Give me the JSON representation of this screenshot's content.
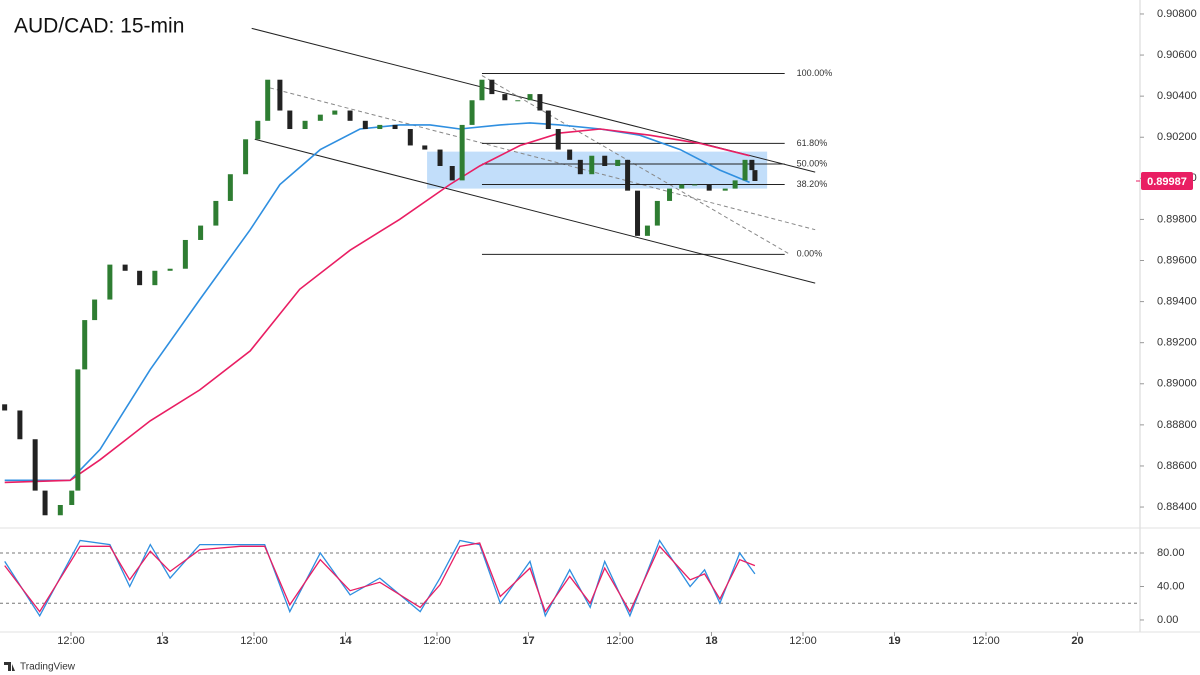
{
  "chart_data": {
    "type": "candlestick",
    "title": "AUD/CAD: 15-min",
    "brand": "TradingView",
    "xlim": [
      2.69,
      152.2
    ],
    "xticks": [
      {
        "value": 12,
        "label": "12:00"
      },
      {
        "value": 24,
        "label": "13"
      },
      {
        "value": 36,
        "label": "12:00"
      },
      {
        "value": 48,
        "label": "14"
      },
      {
        "value": 60,
        "label": "12:00"
      },
      {
        "value": 72,
        "label": "17"
      },
      {
        "value": 84,
        "label": "12:00"
      },
      {
        "value": 96,
        "label": "18"
      },
      {
        "value": 108,
        "label": "12:00"
      },
      {
        "value": 120,
        "label": "19"
      },
      {
        "value": 132,
        "label": "12:00"
      },
      {
        "value": 144,
        "label": "20"
      }
    ],
    "ylim": [
      0.88298,
      0.90868
    ],
    "yticks": [
      {
        "value": 0.908,
        "label": "0.90800"
      },
      {
        "value": 0.906,
        "label": "0.90600"
      },
      {
        "value": 0.904,
        "label": "0.90400"
      },
      {
        "value": 0.902,
        "label": "0.90200"
      },
      {
        "value": 0.9,
        "label": "0.90000"
      },
      {
        "value": 0.898,
        "label": "0.89800"
      },
      {
        "value": 0.896,
        "label": "0.89600"
      },
      {
        "value": 0.894,
        "label": "0.89400"
      },
      {
        "value": 0.892,
        "label": "0.89200"
      },
      {
        "value": 0.89,
        "label": "0.89000"
      },
      {
        "value": 0.888,
        "label": "0.88800"
      },
      {
        "value": 0.886,
        "label": "0.88600"
      },
      {
        "value": 0.884,
        "label": "0.88400"
      }
    ],
    "up_color": "#2e7d32",
    "down_color": "#222222",
    "x": [
      3.3,
      5.3,
      7.3,
      8.6,
      10.6,
      12.1,
      12.9,
      13.8,
      15.1,
      17.1,
      19.1,
      21.0,
      23.0,
      25.0,
      27.0,
      29.0,
      31.0,
      32.9,
      34.9,
      36.5,
      37.8,
      39.4,
      40.7,
      42.7,
      44.7,
      46.6,
      48.6,
      50.6,
      52.5,
      54.5,
      56.5,
      58.4,
      60.4,
      62.0,
      63.3,
      64.6,
      65.9,
      67.2,
      68.9,
      70.6,
      72.2,
      73.5,
      74.6,
      75.9,
      77.4,
      78.8,
      80.3,
      82.0,
      83.7,
      85.0,
      86.3,
      87.6,
      88.9,
      90.5,
      92.1,
      93.8,
      95.7,
      97.8,
      99.1,
      100.4,
      101.3,
      101.7
    ],
    "open": [
      0.889,
      0.8887,
      0.8873,
      0.8848,
      0.8836,
      0.8841,
      0.8848,
      0.8907,
      0.8931,
      0.8941,
      0.8958,
      0.8955,
      0.8948,
      0.8955,
      0.8956,
      0.897,
      0.8977,
      0.8989,
      0.9002,
      0.9019,
      0.9028,
      0.9048,
      0.9033,
      0.9024,
      0.9028,
      0.9031,
      0.9033,
      0.9028,
      0.9024,
      0.9026,
      0.9024,
      0.9016,
      0.9014,
      0.9006,
      0.8999,
      0.9026,
      0.9038,
      0.9048,
      0.9041,
      0.9038,
      0.9038,
      0.9041,
      0.9033,
      0.9024,
      0.9014,
      0.9009,
      0.9002,
      0.9011,
      0.9006,
      0.9009,
      0.8994,
      0.8972,
      0.8977,
      0.8989,
      0.8995,
      0.8997,
      0.8997,
      0.8994,
      0.8995,
      0.8999,
      0.9009,
      0.9004
    ],
    "close": [
      0.8887,
      0.8873,
      0.8848,
      0.8836,
      0.8841,
      0.8848,
      0.8907,
      0.8931,
      0.8941,
      0.8958,
      0.8955,
      0.8948,
      0.8955,
      0.8956,
      0.897,
      0.8977,
      0.8989,
      0.9002,
      0.9019,
      0.9028,
      0.9048,
      0.9033,
      0.9024,
      0.9028,
      0.9031,
      0.9033,
      0.9028,
      0.9024,
      0.9026,
      0.9024,
      0.9016,
      0.9014,
      0.9006,
      0.8999,
      0.9026,
      0.9038,
      0.9048,
      0.9041,
      0.9038,
      0.9038,
      0.9041,
      0.9033,
      0.9024,
      0.9014,
      0.9009,
      0.9002,
      0.9011,
      0.9006,
      0.9009,
      0.8994,
      0.8972,
      0.8977,
      0.8989,
      0.8995,
      0.8997,
      0.8997,
      0.8994,
      0.8995,
      0.8999,
      0.9009,
      0.9004,
      0.89987
    ],
    "last_price": {
      "value": 0.89987,
      "color": "#e91e63"
    },
    "overlays": [
      {
        "color": "#2f8fe0",
        "x": [
          3.3,
          11.9,
          15.8,
          22.4,
          28.9,
          35.5,
          39.4,
          44.7,
          49.9,
          55.1,
          59.1,
          63.0,
          68.3,
          72.2,
          76.1,
          81.4,
          86.6,
          91.9,
          97.1,
          101.0
        ],
        "values": [
          0.8853,
          0.8853,
          0.8868,
          0.8907,
          0.8941,
          0.8975,
          0.8997,
          0.9014,
          0.9024,
          0.9026,
          0.9026,
          0.9024,
          0.9026,
          0.9027,
          0.9026,
          0.9024,
          0.9021,
          0.9014,
          0.9004,
          0.8998
        ]
      },
      {
        "color": "#e91e63",
        "x": [
          3.3,
          11.9,
          15.8,
          22.4,
          28.9,
          35.5,
          42.0,
          48.6,
          55.1,
          61.7,
          65.6,
          70.9,
          76.1,
          81.4,
          87.9,
          94.5,
          101.0
        ],
        "values": [
          0.8852,
          0.8853,
          0.8863,
          0.8882,
          0.8897,
          0.8916,
          0.8946,
          0.8965,
          0.898,
          0.8997,
          0.9006,
          0.9016,
          0.9022,
          0.9024,
          0.9021,
          0.9017,
          0.9011
        ]
      }
    ],
    "zone": {
      "x0": 58.7,
      "x1": 103.3,
      "top": 0.9013,
      "bottom": 0.8995,
      "color": "#90c2f5"
    },
    "fib": {
      "x0": 65.9,
      "x1": 105.6,
      "levels": [
        {
          "label": "100.00%",
          "price": 0.9051
        },
        {
          "label": "61.80%",
          "price": 0.9017
        },
        {
          "label": "50.00%",
          "price": 0.9007
        },
        {
          "label": "38.20%",
          "price": 0.8997
        },
        {
          "label": "0.00%",
          "price": 0.8963
        }
      ]
    },
    "trendlines": [
      {
        "x": [
          35.7,
          109.6
        ],
        "values": [
          0.9073,
          0.9003
        ],
        "dashed": false
      },
      {
        "x": [
          36.1,
          109.6
        ],
        "values": [
          0.9019,
          0.8949
        ],
        "dashed": false
      },
      {
        "x": [
          38.1,
          109.6
        ],
        "values": [
          0.9044,
          0.8975
        ],
        "dashed": true
      },
      {
        "x": [
          65.9,
          106.3
        ],
        "values": [
          0.905,
          0.8963
        ],
        "dashed": true
      }
    ],
    "indicator": {
      "type": "line",
      "ylim": [
        -9.6,
        107.5
      ],
      "yticks": [
        {
          "value": 80,
          "label": "80.00"
        },
        {
          "value": 40,
          "label": "40.00"
        },
        {
          "value": 0,
          "label": "0.00"
        }
      ],
      "levels": [
        80,
        20
      ],
      "x": [
        3.3,
        7.9,
        13.2,
        17.1,
        19.7,
        22.4,
        25.0,
        28.9,
        34.2,
        37.4,
        40.7,
        44.7,
        48.6,
        52.5,
        57.8,
        60.4,
        63.0,
        65.6,
        68.3,
        72.2,
        74.2,
        77.4,
        80.1,
        82.0,
        85.3,
        89.2,
        93.2,
        95.1,
        97.1,
        99.7,
        101.7
      ],
      "series": [
        {
          "color": "#2f8fe0",
          "values": [
            70,
            5,
            95,
            90,
            40,
            90,
            50,
            90,
            90,
            90,
            10,
            80,
            30,
            50,
            10,
            50,
            95,
            90,
            20,
            70,
            5,
            60,
            15,
            70,
            5,
            95,
            40,
            60,
            20,
            80,
            55
          ]
        },
        {
          "color": "#e91e63",
          "values": [
            65,
            10,
            88,
            88,
            48,
            82,
            58,
            84,
            88,
            88,
            18,
            72,
            35,
            45,
            15,
            42,
            88,
            92,
            28,
            62,
            10,
            52,
            20,
            62,
            10,
            88,
            48,
            55,
            25,
            72,
            65
          ]
        }
      ]
    }
  }
}
